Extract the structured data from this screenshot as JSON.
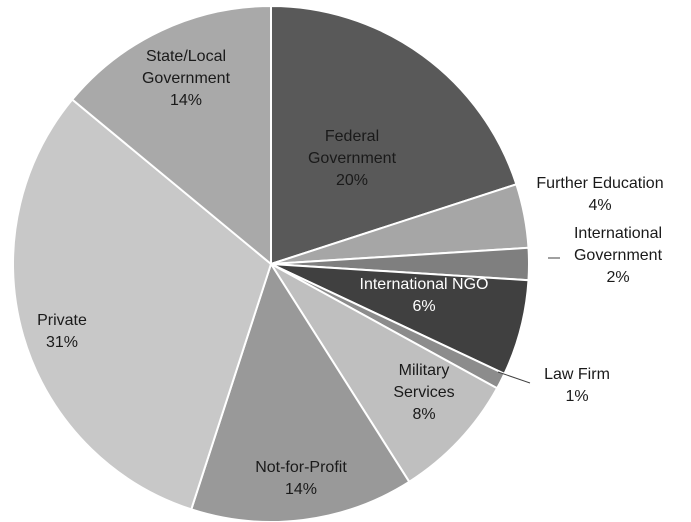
{
  "chart_data": {
    "type": "pie",
    "title": "",
    "slices": [
      {
        "label": "Federal\nGovernment",
        "value": 20,
        "value_label": "20%",
        "color": "#595959"
      },
      {
        "label": "Further Education",
        "value": 4,
        "value_label": "4%",
        "color": "#a6a6a6"
      },
      {
        "label": "International\nGovernment",
        "value": 2,
        "value_label": "2%",
        "color": "#7f7f7f"
      },
      {
        "label": "International NGO",
        "value": 6,
        "value_label": "6%",
        "color": "#404040"
      },
      {
        "label": "Law Firm",
        "value": 1,
        "value_label": "1%",
        "color": "#8c8c8c"
      },
      {
        "label": "Military\nServices",
        "value": 8,
        "value_label": "8%",
        "color": "#bfbfbf"
      },
      {
        "label": "Not-for-Profit",
        "value": 14,
        "value_label": "14%",
        "color": "#999999"
      },
      {
        "label": "Private",
        "value": 31,
        "value_label": "31%",
        "color": "#c8c8c8"
      },
      {
        "label": "State/Local\nGovernment",
        "value": 14,
        "value_label": "14%",
        "color": "#a9a9a9"
      }
    ]
  }
}
